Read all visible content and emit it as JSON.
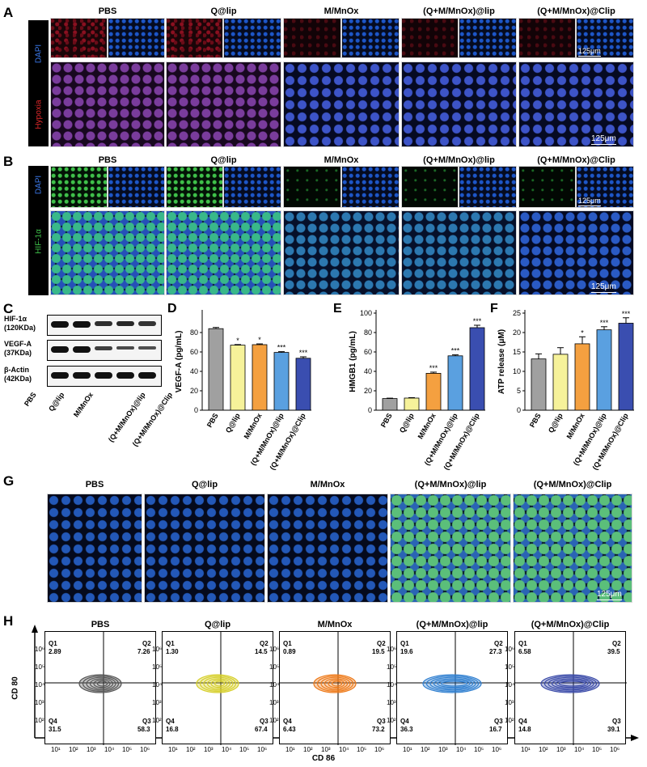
{
  "groups": [
    "PBS",
    "Q@lip",
    "M/MnOx",
    "(Q+M/MnOx)@lip",
    "(Q+M/MnOx)@Clip"
  ],
  "panels": {
    "A": {
      "letter": "A",
      "stain1": "DAPI",
      "stain2": "Hypoxia",
      "scale_small": "125μm",
      "scale_large": "125μm"
    },
    "B": {
      "letter": "B",
      "stain1": "DAPI",
      "stain2": "HIF-1α",
      "scale_small": "125μm",
      "scale_large": "125μm"
    },
    "C": {
      "letter": "C",
      "proteins": [
        {
          "name": "HIF-1α",
          "size": "(120KDa)"
        },
        {
          "name": "VEGF-A",
          "size": "(37KDa)"
        },
        {
          "name": "β-Actin",
          "size": "(42KDa)"
        }
      ]
    },
    "G": {
      "letter": "G",
      "scale": "125μm"
    },
    "H": {
      "letter": "H",
      "xlabel": "CD 86",
      "ylabel": "CD 80",
      "ticks": [
        "10¹",
        "10²",
        "10³",
        "10⁴",
        "10⁵",
        "10⁶"
      ],
      "quadrant_labels": [
        "Q1",
        "Q2",
        "Q3",
        "Q4"
      ],
      "quadrants": [
        {
          "q1": "2.89",
          "q2": "7.26",
          "q3": "58.3",
          "q4": "31.5",
          "color": "#555555"
        },
        {
          "q1": "1.30",
          "q2": "14.5",
          "q3": "67.4",
          "q4": "16.8",
          "color": "#d6cf2a"
        },
        {
          "q1": "0.89",
          "q2": "19.5",
          "q3": "73.2",
          "q4": "6.43",
          "color": "#ee7a1a"
        },
        {
          "q1": "19.6",
          "q2": "27.3",
          "q3": "16.7",
          "q4": "36.3",
          "color": "#2f7fd0"
        },
        {
          "q1": "6.58",
          "q2": "39.5",
          "q3": "39.1",
          "q4": "14.8",
          "color": "#3a4aa8"
        }
      ]
    }
  },
  "bar_colors": [
    "#a0a0a0",
    "#f6f29a",
    "#f4a040",
    "#5aa0e0",
    "#3a4eb0"
  ],
  "chart_data": [
    {
      "type": "bar",
      "panel": "D",
      "ylabel": "VEGF-A (pg/mL)",
      "ylim": [
        0,
        100
      ],
      "yticks": [
        0,
        20,
        40,
        60,
        80
      ],
      "categories": [
        "PBS",
        "Q@lip",
        "M/MnOx",
        "(Q+M/MnOx)@lip",
        "(Q+M/MnOx)@Clip"
      ],
      "values": [
        84,
        67,
        67.5,
        59.5,
        53.5
      ],
      "errors": [
        1.2,
        0.6,
        0.8,
        0.8,
        1.5
      ],
      "significance": [
        "",
        "*",
        "*",
        "***",
        "***"
      ]
    },
    {
      "type": "bar",
      "panel": "E",
      "ylabel": "HMGB1 (pg/mL)",
      "ylim": [
        0,
        100
      ],
      "yticks": [
        0,
        20,
        40,
        60,
        80,
        100
      ],
      "categories": [
        "PBS",
        "Q@lip",
        "M/MnOx",
        "(Q+M/MnOx)@lip",
        "(Q+M/MnOx)@Clip"
      ],
      "values": [
        12,
        12.5,
        38,
        56,
        85
      ],
      "errors": [
        0.4,
        0.4,
        1.2,
        1,
        2.5
      ],
      "significance": [
        "",
        "",
        "***",
        "***",
        "***"
      ]
    },
    {
      "type": "bar",
      "panel": "F",
      "ylabel": "ATP release (μM)",
      "ylim": [
        0,
        25
      ],
      "yticks": [
        0,
        5,
        10,
        15,
        20,
        25
      ],
      "categories": [
        "PBS",
        "Q@lip",
        "M/MnOx",
        "(Q+M/MnOx)@lip",
        "(Q+M/MnOx)@Clip"
      ],
      "values": [
        13.2,
        14.4,
        17.1,
        20.7,
        22.4
      ],
      "errors": [
        1.3,
        1.7,
        1.8,
        0.8,
        1.4
      ],
      "significance": [
        "",
        "",
        "*",
        "***",
        "***"
      ]
    }
  ]
}
